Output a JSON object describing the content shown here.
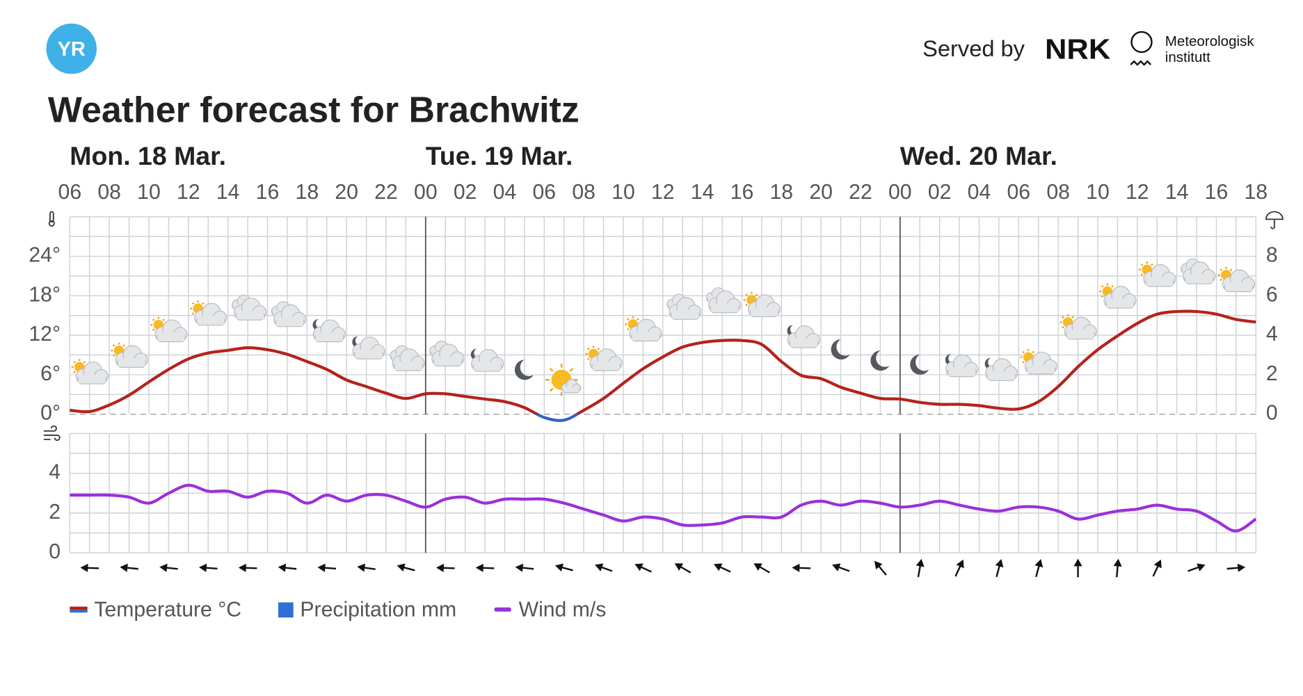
{
  "header": {
    "logo": "YR",
    "served_by": "Served by",
    "partner": "NRK",
    "institute": [
      "Meteorologisk",
      "institutt"
    ]
  },
  "chart_data": {
    "type": "line",
    "title": "Weather forecast for Brachwitz",
    "days": [
      "Mon. 18 Mar.",
      "Tue. 19 Mar.",
      "Wed. 20 Mar."
    ],
    "categories": [
      "06",
      null,
      "08",
      null,
      "10",
      null,
      "12",
      null,
      "14",
      null,
      "16",
      null,
      "18",
      null,
      "20",
      null,
      "22",
      null,
      "00",
      null,
      "02",
      null,
      "04",
      null,
      "06",
      null,
      "08",
      null,
      "10",
      null,
      "12",
      null,
      "14",
      null,
      "16",
      null,
      "18",
      null,
      "20",
      null,
      "22",
      null,
      "00",
      null,
      "02",
      null,
      "04",
      null,
      "06",
      null,
      "08",
      null,
      "10",
      null,
      "12",
      null,
      "14",
      null,
      "16",
      null,
      "18"
    ],
    "series": [
      {
        "name": "Temperature °C",
        "color": "#b5221b",
        "negative_color": "#3266c8",
        "axis": "y",
        "values": [
          0.6,
          0.4,
          1.4,
          2.9,
          4.9,
          6.8,
          8.4,
          9.3,
          9.7,
          10.1,
          9.8,
          9.1,
          8.0,
          6.8,
          5.2,
          4.2,
          3.2,
          2.4,
          3.1,
          3.1,
          2.7,
          2.3,
          1.9,
          1.0,
          -0.5,
          -0.9,
          0.6,
          2.4,
          4.7,
          6.9,
          8.7,
          10.2,
          10.9,
          11.2,
          11.2,
          10.6,
          8.0,
          5.9,
          5.4,
          4.1,
          3.2,
          2.4,
          2.3,
          1.8,
          1.5,
          1.5,
          1.3,
          0.9,
          0.8,
          1.9,
          4.2,
          7.2,
          9.8,
          11.9,
          13.8,
          15.2,
          15.6,
          15.6,
          15.2,
          14.4,
          14.0
        ]
      },
      {
        "name": "Precipitation mm",
        "color": "#2f6fd6",
        "axis": "y2"
      },
      {
        "name": "Wind m/s",
        "color": "#9b30d9",
        "axis": "wind",
        "values": [
          2.9,
          2.9,
          2.9,
          2.8,
          2.5,
          3.0,
          3.4,
          3.1,
          3.1,
          2.8,
          3.1,
          3.0,
          2.5,
          2.9,
          2.6,
          2.9,
          2.9,
          2.6,
          2.3,
          2.7,
          2.8,
          2.5,
          2.7,
          2.7,
          2.7,
          2.5,
          2.2,
          1.9,
          1.6,
          1.8,
          1.7,
          1.4,
          1.4,
          1.5,
          1.8,
          1.8,
          1.8,
          2.4,
          2.6,
          2.4,
          2.6,
          2.5,
          2.3,
          2.4,
          2.6,
          2.4,
          2.2,
          2.1,
          2.3,
          2.3,
          2.1,
          1.7,
          1.9,
          2.1,
          2.2,
          2.4,
          2.2,
          2.1,
          1.6,
          1.1,
          1.7
        ]
      }
    ],
    "wind_direction": [
      272,
      276,
      276,
      274,
      272,
      276,
      274,
      278,
      285,
      272,
      272,
      276,
      285,
      290,
      295,
      300,
      295,
      300,
      272,
      290,
      320,
      10,
      25,
      15,
      15,
      0,
      5,
      25,
      70,
      85
    ],
    "ylim": [
      0,
      30
    ],
    "yticks": [
      {
        "value": 0,
        "label": "0°"
      },
      {
        "value": 6,
        "label": "6°"
      },
      {
        "value": 12,
        "label": "12°"
      },
      {
        "value": 18,
        "label": "18°"
      },
      {
        "value": 24,
        "label": "24°"
      }
    ],
    "ygrid": [
      0,
      3,
      6,
      9,
      12,
      15,
      18,
      21,
      24,
      27,
      30
    ],
    "y2lim": [
      0,
      10
    ],
    "y2ticks": [
      0,
      2,
      4,
      6,
      8
    ],
    "wind_ylim": [
      0,
      6
    ],
    "wind_yticks": [
      0,
      2,
      4
    ],
    "wind_ygrid": [
      0,
      1,
      2,
      3,
      4,
      5,
      6
    ],
    "grid": true
  }
}
